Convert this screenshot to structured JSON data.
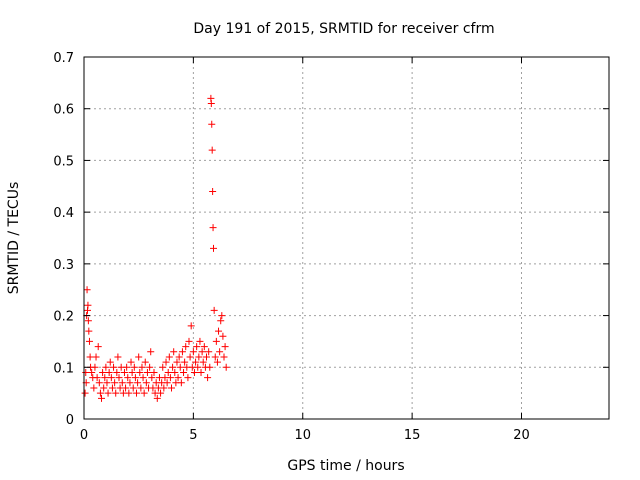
{
  "chart_data": {
    "type": "scatter",
    "title": "Day 191 of 2015, SRMTID for receiver cfrm",
    "xlabel": "GPS time / hours",
    "ylabel": "SRMTID / TECUs",
    "xlim": [
      0,
      24
    ],
    "ylim": [
      0,
      0.7
    ],
    "xticks": [
      "0",
      "5",
      "10",
      "15",
      "20"
    ],
    "yticks": [
      "0",
      "0.1",
      "0.2",
      "0.3",
      "0.4",
      "0.5",
      "0.6",
      "0.7"
    ],
    "grid": true,
    "marker": "+",
    "color": "#ff0000",
    "series": [
      {
        "name": "SRMTID",
        "points": [
          [
            0.05,
            0.05
          ],
          [
            0.08,
            0.09
          ],
          [
            0.1,
            0.07
          ],
          [
            0.12,
            0.2
          ],
          [
            0.14,
            0.25
          ],
          [
            0.16,
            0.21
          ],
          [
            0.18,
            0.22
          ],
          [
            0.2,
            0.19
          ],
          [
            0.22,
            0.17
          ],
          [
            0.25,
            0.15
          ],
          [
            0.28,
            0.12
          ],
          [
            0.3,
            0.1
          ],
          [
            0.35,
            0.09
          ],
          [
            0.4,
            0.08
          ],
          [
            0.45,
            0.06
          ],
          [
            0.5,
            0.1
          ],
          [
            0.55,
            0.12
          ],
          [
            0.6,
            0.08
          ],
          [
            0.65,
            0.14
          ],
          [
            0.7,
            0.07
          ],
          [
            0.75,
            0.05
          ],
          [
            0.8,
            0.04
          ],
          [
            0.85,
            0.09
          ],
          [
            0.9,
            0.06
          ],
          [
            0.95,
            0.08
          ],
          [
            1.0,
            0.1
          ],
          [
            1.05,
            0.07
          ],
          [
            1.1,
            0.05
          ],
          [
            1.15,
            0.09
          ],
          [
            1.2,
            0.11
          ],
          [
            1.25,
            0.08
          ],
          [
            1.3,
            0.06
          ],
          [
            1.35,
            0.1
          ],
          [
            1.4,
            0.07
          ],
          [
            1.45,
            0.05
          ],
          [
            1.5,
            0.09
          ],
          [
            1.55,
            0.12
          ],
          [
            1.6,
            0.08
          ],
          [
            1.65,
            0.06
          ],
          [
            1.7,
            0.1
          ],
          [
            1.75,
            0.07
          ],
          [
            1.8,
            0.05
          ],
          [
            1.85,
            0.09
          ],
          [
            1.9,
            0.06
          ],
          [
            1.95,
            0.1
          ],
          [
            2.0,
            0.08
          ],
          [
            2.05,
            0.05
          ],
          [
            2.1,
            0.07
          ],
          [
            2.15,
            0.11
          ],
          [
            2.2,
            0.09
          ],
          [
            2.25,
            0.06
          ],
          [
            2.3,
            0.1
          ],
          [
            2.35,
            0.08
          ],
          [
            2.4,
            0.05
          ],
          [
            2.45,
            0.07
          ],
          [
            2.5,
            0.12
          ],
          [
            2.55,
            0.09
          ],
          [
            2.6,
            0.06
          ],
          [
            2.65,
            0.1
          ],
          [
            2.7,
            0.08
          ],
          [
            2.75,
            0.05
          ],
          [
            2.8,
            0.11
          ],
          [
            2.85,
            0.07
          ],
          [
            2.9,
            0.09
          ],
          [
            2.95,
            0.06
          ],
          [
            3.0,
            0.1
          ],
          [
            3.05,
            0.13
          ],
          [
            3.1,
            0.08
          ],
          [
            3.15,
            0.06
          ],
          [
            3.2,
            0.09
          ],
          [
            3.25,
            0.05
          ],
          [
            3.3,
            0.07
          ],
          [
            3.35,
            0.04
          ],
          [
            3.4,
            0.06
          ],
          [
            3.45,
            0.08
          ],
          [
            3.5,
            0.05
          ],
          [
            3.55,
            0.07
          ],
          [
            3.6,
            0.1
          ],
          [
            3.65,
            0.06
          ],
          [
            3.7,
            0.08
          ],
          [
            3.75,
            0.11
          ],
          [
            3.8,
            0.07
          ],
          [
            3.85,
            0.09
          ],
          [
            3.9,
            0.12
          ],
          [
            3.95,
            0.08
          ],
          [
            4.0,
            0.06
          ],
          [
            4.05,
            0.1
          ],
          [
            4.1,
            0.13
          ],
          [
            4.15,
            0.09
          ],
          [
            4.2,
            0.07
          ],
          [
            4.25,
            0.11
          ],
          [
            4.3,
            0.08
          ],
          [
            4.35,
            0.12
          ],
          [
            4.4,
            0.1
          ],
          [
            4.45,
            0.07
          ],
          [
            4.5,
            0.13
          ],
          [
            4.55,
            0.09
          ],
          [
            4.6,
            0.11
          ],
          [
            4.65,
            0.14
          ],
          [
            4.7,
            0.1
          ],
          [
            4.75,
            0.08
          ],
          [
            4.8,
            0.15
          ],
          [
            4.85,
            0.12
          ],
          [
            4.9,
            0.18
          ],
          [
            4.95,
            0.1
          ],
          [
            5.0,
            0.13
          ],
          [
            5.05,
            0.09
          ],
          [
            5.1,
            0.11
          ],
          [
            5.15,
            0.14
          ],
          [
            5.2,
            0.1
          ],
          [
            5.25,
            0.12
          ],
          [
            5.3,
            0.15
          ],
          [
            5.35,
            0.09
          ],
          [
            5.4,
            0.13
          ],
          [
            5.45,
            0.11
          ],
          [
            5.5,
            0.14
          ],
          [
            5.55,
            0.1
          ],
          [
            5.6,
            0.12
          ],
          [
            5.65,
            0.08
          ],
          [
            5.7,
            0.13
          ],
          [
            5.75,
            0.1
          ],
          [
            5.8,
            0.62
          ],
          [
            5.82,
            0.61
          ],
          [
            5.84,
            0.57
          ],
          [
            5.86,
            0.52
          ],
          [
            5.88,
            0.44
          ],
          [
            5.9,
            0.37
          ],
          [
            5.92,
            0.33
          ],
          [
            5.95,
            0.21
          ],
          [
            6.0,
            0.12
          ],
          [
            6.05,
            0.15
          ],
          [
            6.1,
            0.11
          ],
          [
            6.15,
            0.17
          ],
          [
            6.2,
            0.13
          ],
          [
            6.25,
            0.19
          ],
          [
            6.3,
            0.2
          ],
          [
            6.35,
            0.16
          ],
          [
            6.4,
            0.12
          ],
          [
            6.45,
            0.14
          ],
          [
            6.5,
            0.1
          ]
        ]
      }
    ]
  }
}
